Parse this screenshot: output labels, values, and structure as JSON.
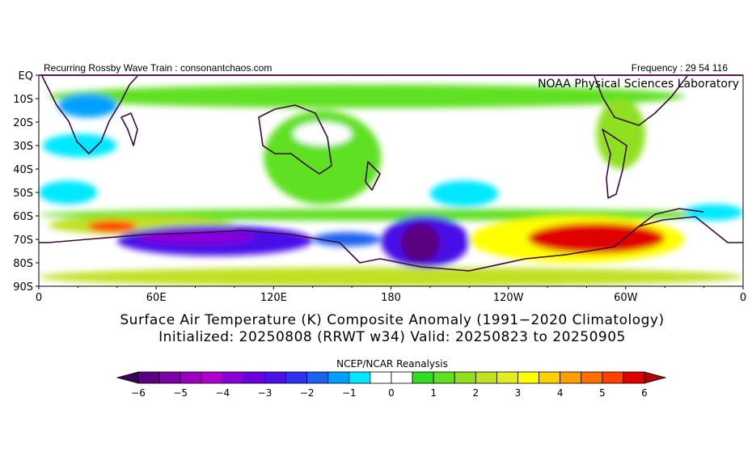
{
  "chart_data": {
    "type": "heatmap",
    "header_left": "Recurring Rossby Wave Train : consonantchaos.com",
    "header_right": "Frequency : 29 54 116",
    "credit": "NOAA Physical Sciences Laboratory",
    "title_line1": "Surface Air Temperature (K) Composite Anomaly (1991−2020 Climatology)",
    "title_line2": "Initialized: 20250808 (RRWT w34) Valid: 20250823 to 20250905",
    "colorbar_title": "NCEP/NCAR Reanalysis",
    "x_ticks": [
      "0",
      "60E",
      "120E",
      "180",
      "120W",
      "60W",
      "0"
    ],
    "x_tick_lons": [
      0,
      60,
      120,
      180,
      240,
      300,
      360
    ],
    "y_ticks": [
      "EQ",
      "10S",
      "20S",
      "30S",
      "40S",
      "50S",
      "60S",
      "70S",
      "80S",
      "90S"
    ],
    "y_tick_lats": [
      0,
      -10,
      -20,
      -30,
      -40,
      -50,
      -60,
      -70,
      -80,
      -90
    ],
    "xlim": [
      0,
      360
    ],
    "ylim": [
      -90,
      0
    ],
    "colorbar_ticks": [
      "−6",
      "−5",
      "−4",
      "−3",
      "−2",
      "−1",
      "0",
      "1",
      "2",
      "3",
      "4",
      "5",
      "6"
    ],
    "colorbar_levels": [
      -6,
      -5.5,
      -5,
      -4.5,
      -4,
      -3.5,
      -3,
      -2.5,
      -2,
      -1.5,
      -1,
      -0.5,
      0,
      0.5,
      1,
      1.5,
      2,
      2.5,
      3,
      3.5,
      4,
      4.5,
      5,
      5.5,
      6
    ],
    "colorbar_colors": [
      "#3a0058",
      "#5a0080",
      "#7a00a8",
      "#9a00c0",
      "#b000d0",
      "#8a00d8",
      "#6a00e0",
      "#4a10e8",
      "#3030f0",
      "#1e60f0",
      "#00a0ff",
      "#00e8ff",
      "#ffffff",
      "#ffffff",
      "#30dd20",
      "#60e020",
      "#90e020",
      "#c0e020",
      "#e0ee20",
      "#ffff00",
      "#ffd000",
      "#ffa000",
      "#ff7000",
      "#ff4000",
      "#e00000",
      "#b00000"
    ],
    "anomaly_regions": [
      {
        "lon": [
          5,
          330
        ],
        "lat": [
          -4,
          -14
        ],
        "value": 1
      },
      {
        "lon": [
          10,
          40
        ],
        "lat": [
          -8,
          -18
        ],
        "value": -1.5
      },
      {
        "lon": [
          2,
          40
        ],
        "lat": [
          -25,
          -35
        ],
        "value": -1
      },
      {
        "lon": [
          0,
          30
        ],
        "lat": [
          -45,
          -55
        ],
        "value": -1
      },
      {
        "lon": [
          115,
          175
        ],
        "lat": [
          -15,
          -55
        ],
        "value": 1
      },
      {
        "lon": [
          130,
          160
        ],
        "lat": [
          -20,
          -30
        ],
        "value": -0.5
      },
      {
        "lon": [
          200,
          235
        ],
        "lat": [
          -45,
          -56
        ],
        "value": -1
      },
      {
        "lon": [
          285,
          310
        ],
        "lat": [
          -10,
          -40
        ],
        "value": 1.5
      },
      {
        "lon": [
          0,
          360
        ],
        "lat": [
          -57,
          -62
        ],
        "value": 1
      },
      {
        "lon": [
          5,
          100
        ],
        "lat": [
          -60,
          -68
        ],
        "value": 2
      },
      {
        "lon": [
          25,
          50
        ],
        "lat": [
          -62,
          -67
        ],
        "value": 5
      },
      {
        "lon": [
          40,
          140
        ],
        "lat": [
          -64,
          -77
        ],
        "value": -3
      },
      {
        "lon": [
          50,
          110
        ],
        "lat": [
          -66,
          -72
        ],
        "value": -4
      },
      {
        "lon": [
          140,
          175
        ],
        "lat": [
          -67,
          -73
        ],
        "value": -2
      },
      {
        "lon": [
          175,
          220
        ],
        "lat": [
          -60,
          -82
        ],
        "value": -3
      },
      {
        "lon": [
          185,
          205
        ],
        "lat": [
          -63,
          -80
        ],
        "value": -6
      },
      {
        "lon": [
          0,
          360
        ],
        "lat": [
          -82,
          -90
        ],
        "value": 2
      },
      {
        "lon": [
          220,
          330
        ],
        "lat": [
          -60,
          -80
        ],
        "value": 3
      },
      {
        "lon": [
          250,
          320
        ],
        "lat": [
          -63,
          -76
        ],
        "value": 5.5
      },
      {
        "lon": [
          330,
          360
        ],
        "lat": [
          -55,
          -62
        ],
        "value": -1
      }
    ]
  }
}
